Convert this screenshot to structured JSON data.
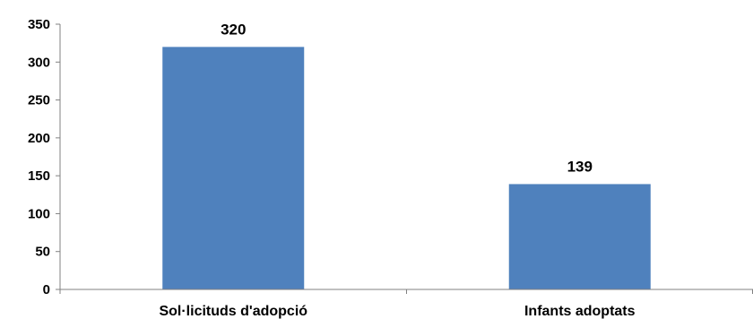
{
  "chart_data": {
    "type": "bar",
    "categories": [
      "Sol·licituds d'adopció",
      "Infants adoptats"
    ],
    "values": [
      320,
      139
    ],
    "data_labels": [
      "320",
      "139"
    ],
    "ylim": [
      0,
      350
    ],
    "yticks": [
      0,
      50,
      100,
      150,
      200,
      250,
      300,
      350
    ],
    "ytick_labels": [
      "0",
      "50",
      "100",
      "150",
      "200",
      "250",
      "300",
      "350"
    ],
    "title": "",
    "xlabel": "",
    "ylabel": "",
    "grid": false,
    "legend": "none",
    "bar_color": "#4f81bd",
    "axis_color": "#808080"
  }
}
